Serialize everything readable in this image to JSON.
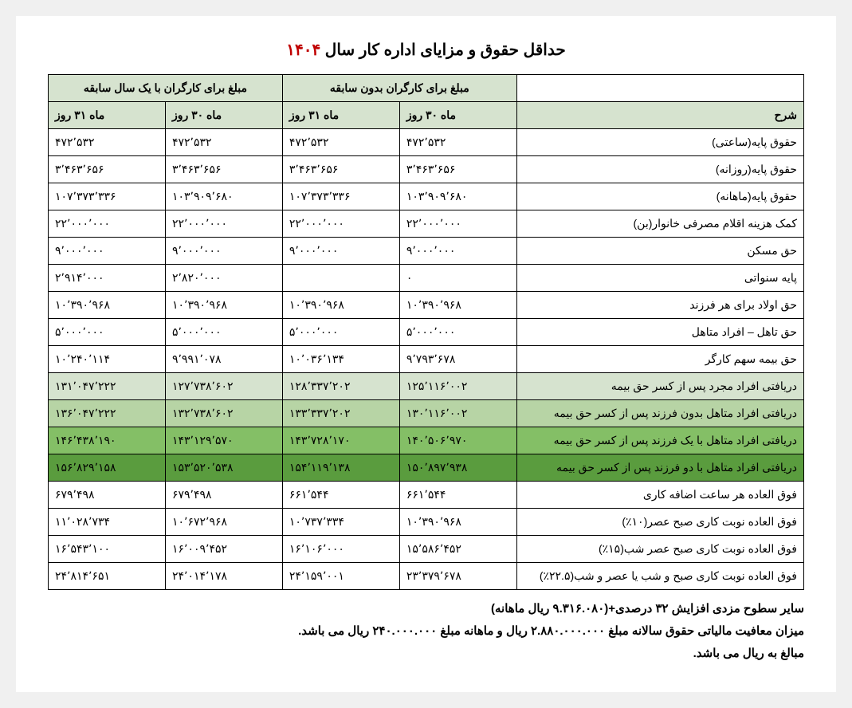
{
  "title_prefix": "حداقل حقوق و مزایای اداره کار سال ",
  "title_year": "۱۴۰۴",
  "headers": {
    "blank_top_right": "",
    "group_noexp": "مبلغ برای کارگران بدون سابقه",
    "group_exp": "مبلغ برای کارگران با یک سال سابقه",
    "desc": "شرح",
    "m30": "ماه ۳۰ روز",
    "m31": "ماه ۳۱ روز"
  },
  "colors": {
    "header_light": "#d6e3cf",
    "row_g1": "#d6e3cf",
    "row_g2": "#b7d4a5",
    "row_g3": "#84bf66",
    "row_g4": "#5a9c3e",
    "title_year": "#c00000",
    "border": "#000000",
    "background": "#ffffff"
  },
  "typography": {
    "title_fontsize_pt": 15,
    "cell_fontsize_pt": 10.5,
    "footnote_fontsize_pt": 11,
    "font_family": "Tahoma"
  },
  "rows": [
    {
      "shade": "",
      "desc": "حقوق پایه(ساعتی)",
      "n30": "۴۷۲٬۵۳۲",
      "n31": "۴۷۲٬۵۳۲",
      "e30": "۴۷۲٬۵۳۲",
      "e31": "۴۷۲٬۵۳۲"
    },
    {
      "shade": "",
      "desc": "حقوق پایه(روزانه)",
      "n30": "۳٬۴۶۳٬۶۵۶",
      "n31": "۳٬۴۶۳٬۶۵۶",
      "e30": "۳٬۴۶۳٬۶۵۶",
      "e31": "۳٬۴۶۳٬۶۵۶"
    },
    {
      "shade": "",
      "desc": "حقوق پایه(ماهانه)",
      "n30": "۱۰۳٬۹۰۹٬۶۸۰",
      "n31": "۱۰۷٬۳۷۳٬۳۳۶",
      "e30": "۱۰۳٬۹۰۹٬۶۸۰",
      "e31": "۱۰۷٬۳۷۳٬۳۳۶"
    },
    {
      "shade": "",
      "desc": "کمک هزینه اقلام مصرفی خانوار(بن)",
      "n30": "۲۲٬۰۰۰٬۰۰۰",
      "n31": "۲۲٬۰۰۰٬۰۰۰",
      "e30": "۲۲٬۰۰۰٬۰۰۰",
      "e31": "۲۲٬۰۰۰٬۰۰۰"
    },
    {
      "shade": "",
      "desc": "حق مسکن",
      "n30": "۹٬۰۰۰٬۰۰۰",
      "n31": "۹٬۰۰۰٬۰۰۰",
      "e30": "۹٬۰۰۰٬۰۰۰",
      "e31": "۹٬۰۰۰٬۰۰۰"
    },
    {
      "shade": "",
      "desc": "پایه سنواتی",
      "n30": "۰",
      "n31": "",
      "e30": "۲٬۸۲۰٬۰۰۰",
      "e31": "۲٬۹۱۴٬۰۰۰"
    },
    {
      "shade": "",
      "desc": "حق اولاد برای هر فرزند",
      "n30": "۱۰٬۳۹۰٬۹۶۸",
      "n31": "۱۰٬۳۹۰٬۹۶۸",
      "e30": "۱۰٬۳۹۰٬۹۶۸",
      "e31": "۱۰٬۳۹۰٬۹۶۸"
    },
    {
      "shade": "",
      "desc": "حق  تاهل – افراد متاهل",
      "n30": "۵٬۰۰۰٬۰۰۰",
      "n31": "۵٬۰۰۰٬۰۰۰",
      "e30": "۵٬۰۰۰٬۰۰۰",
      "e31": "۵٬۰۰۰٬۰۰۰"
    },
    {
      "shade": "",
      "desc": "حق بیمه سهم کارگر",
      "n30": "۹٬۷۹۳٬۶۷۸",
      "n31": "۱۰٬۰۳۶٬۱۳۴",
      "e30": "۹٬۹۹۱٬۰۷۸",
      "e31": "۱۰٬۲۴۰٬۱۱۴"
    },
    {
      "shade": "row-g1",
      "desc": "دریافتی افراد مجرد پس از کسر حق بیمه",
      "n30": "۱۲۵٬۱۱۶٬۰۰۲",
      "n31": "۱۲۸٬۳۳۷٬۲۰۲",
      "e30": "۱۲۷٬۷۳۸٬۶۰۲",
      "e31": "۱۳۱٬۰۴۷٬۲۲۲"
    },
    {
      "shade": "row-g2",
      "desc": "دریافتی افراد متاهل بدون فرزند پس از کسر حق بیمه",
      "n30": "۱۳۰٬۱۱۶٬۰۰۲",
      "n31": "۱۳۳٬۳۳۷٬۲۰۲",
      "e30": "۱۳۲٬۷۳۸٬۶۰۲",
      "e31": "۱۳۶٬۰۴۷٬۲۲۲"
    },
    {
      "shade": "row-g3",
      "desc": "دریافتی افراد متاهل با یک فرزند پس از کسر حق بیمه",
      "n30": "۱۴۰٬۵۰۶٬۹۷۰",
      "n31": "۱۴۳٬۷۲۸٬۱۷۰",
      "e30": "۱۴۳٬۱۲۹٬۵۷۰",
      "e31": "۱۴۶٬۴۳۸٬۱۹۰"
    },
    {
      "shade": "row-g4",
      "desc": "دریافتی افراد متاهل با دو فرزند پس از کسر حق بیمه",
      "n30": "۱۵۰٬۸۹۷٬۹۳۸",
      "n31": "۱۵۴٬۱۱۹٬۱۳۸",
      "e30": "۱۵۳٬۵۲۰٬۵۳۸",
      "e31": "۱۵۶٬۸۲۹٬۱۵۸"
    },
    {
      "shade": "",
      "desc": "فوق العاده هر ساعت اضافه کاری",
      "n30": "۶۶۱٬۵۴۴",
      "n31": "۶۶۱٬۵۴۴",
      "e30": "۶۷۹٬۴۹۸",
      "e31": "۶۷۹٬۴۹۸"
    },
    {
      "shade": "",
      "desc": "فوق العاده نوبت کاری صبح عصر(۱۰٪)",
      "n30": "۱۰٬۳۹۰٬۹۶۸",
      "n31": "۱۰٬۷۳۷٬۳۳۴",
      "e30": "۱۰٬۶۷۲٬۹۶۸",
      "e31": "۱۱٬۰۲۸٬۷۳۴"
    },
    {
      "shade": "",
      "desc": "فوق العاده نوبت کاری صبح عصر شب(۱۵٪)",
      "n30": "۱۵٬۵۸۶٬۴۵۲",
      "n31": "۱۶٬۱۰۶٬۰۰۰",
      "e30": "۱۶٬۰۰۹٬۴۵۲",
      "e31": "۱۶٬۵۴۳٬۱۰۰"
    },
    {
      "shade": "",
      "desc": "فوق العاده نوبت کاری صبح و شب یا عصر و شب(۲۲.۵٪)",
      "n30": "۲۳٬۳۷۹٬۶۷۸",
      "n31": "۲۴٬۱۵۹٬۰۰۱",
      "e30": "۲۴٬۰۱۴٬۱۷۸",
      "e31": "۲۴٬۸۱۴٬۶۵۱"
    }
  ],
  "footnotes": [
    "سایر سطوح مزدی افزایش ۳۲ درصدی+(۹.۳۱۶.۰۸۰ ریال ماهانه)",
    "میزان معافیت مالیاتی حقوق سالانه مبلغ ۲.۸۸۰.۰۰۰.۰۰۰ ریال و ماهانه مبلغ ۲۴۰.۰۰۰.۰۰۰ ریال می باشد.",
    "مبالغ به ریال می باشد."
  ]
}
